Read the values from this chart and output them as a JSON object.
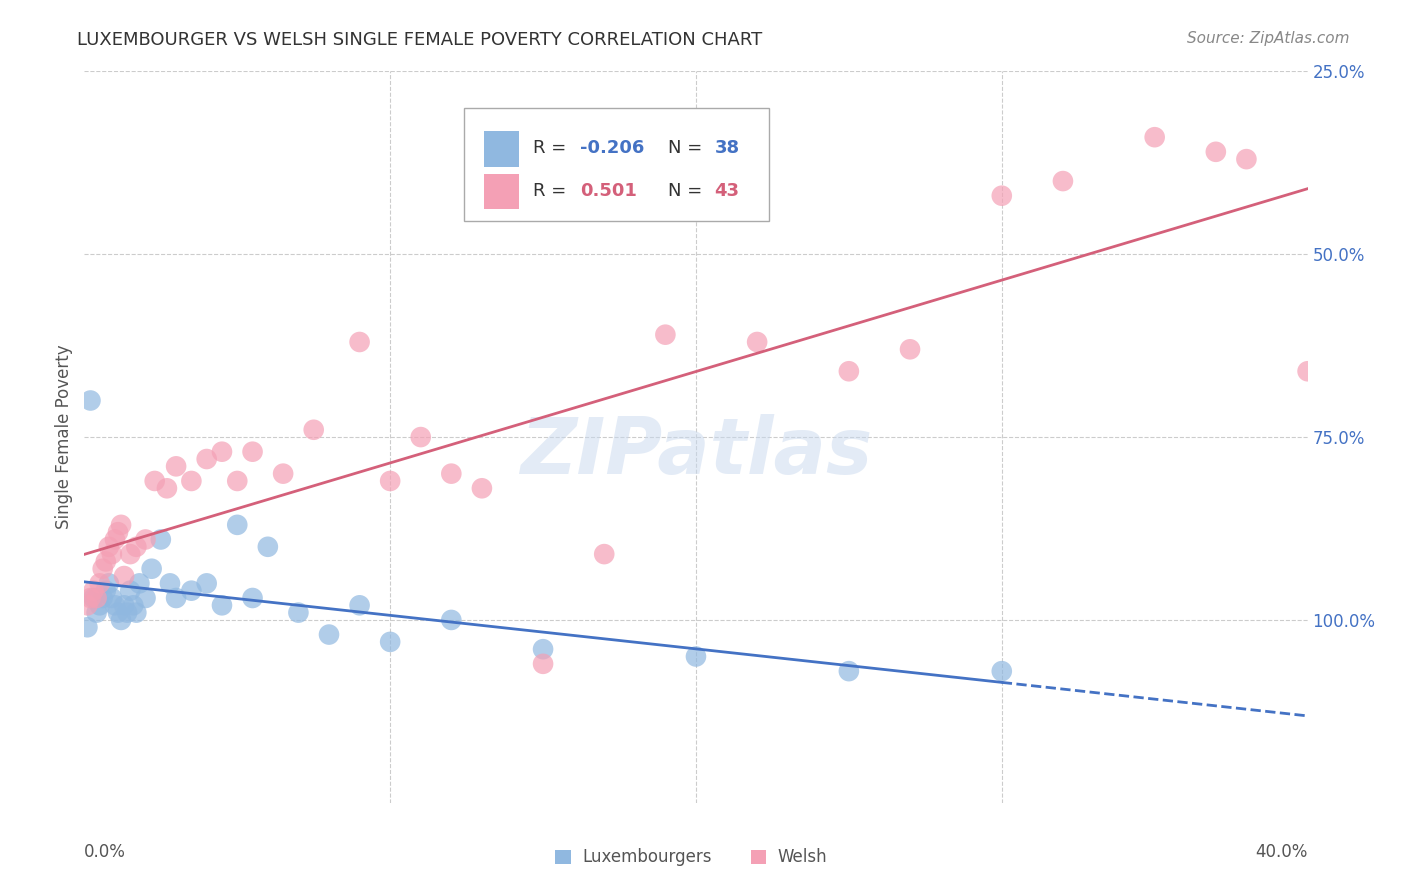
{
  "title": "LUXEMBOURGER VS WELSH SINGLE FEMALE POVERTY CORRELATION CHART",
  "source": "Source: ZipAtlas.com",
  "ylabel": "Single Female Poverty",
  "background_color": "#ffffff",
  "grid_color": "#cccccc",
  "watermark": "ZIPatlas",
  "lux_color": "#90b8e0",
  "welsh_color": "#f4a0b5",
  "lux_line_color": "#4472c4",
  "welsh_line_color": "#d4607a",
  "lux_R": -0.206,
  "lux_N": 38,
  "welsh_R": 0.501,
  "welsh_N": 43,
  "xlim": [
    0.0,
    40.0
  ],
  "ylim": [
    0.0,
    100.0
  ],
  "lux_x": [
    0.1,
    0.2,
    0.3,
    0.4,
    0.5,
    0.6,
    0.7,
    0.8,
    0.9,
    1.0,
    1.1,
    1.2,
    1.3,
    1.4,
    1.5,
    1.6,
    1.7,
    1.8,
    2.0,
    2.2,
    2.5,
    2.8,
    3.0,
    3.5,
    4.0,
    4.5,
    5.0,
    5.5,
    6.0,
    7.0,
    8.0,
    9.0,
    10.0,
    12.0,
    15.0,
    20.0,
    25.0,
    30.0
  ],
  "lux_y": [
    24,
    55,
    28,
    26,
    27,
    28,
    29,
    30,
    28,
    27,
    26,
    25,
    27,
    26,
    29,
    27,
    26,
    30,
    28,
    32,
    36,
    30,
    28,
    29,
    30,
    27,
    38,
    28,
    35,
    26,
    23,
    27,
    22,
    25,
    21,
    20,
    18,
    18
  ],
  "welsh_x": [
    0.1,
    0.2,
    0.3,
    0.4,
    0.5,
    0.6,
    0.7,
    0.8,
    0.9,
    1.0,
    1.1,
    1.2,
    1.3,
    1.5,
    1.7,
    2.0,
    2.3,
    2.7,
    3.0,
    3.5,
    4.0,
    4.5,
    5.0,
    5.5,
    6.5,
    7.5,
    9.0,
    10.0,
    11.0,
    12.0,
    13.0,
    15.0,
    17.0,
    19.0,
    22.0,
    25.0,
    27.0,
    30.0,
    32.0,
    35.0,
    37.0,
    38.0,
    40.0
  ],
  "welsh_y": [
    27,
    28,
    29,
    28,
    30,
    32,
    33,
    35,
    34,
    36,
    37,
    38,
    31,
    34,
    35,
    36,
    44,
    43,
    46,
    44,
    47,
    48,
    44,
    48,
    45,
    51,
    63,
    44,
    50,
    45,
    43,
    19,
    34,
    64,
    63,
    59,
    62,
    83,
    85,
    91,
    89,
    88,
    59
  ],
  "lux_solid_xmax": 30.0,
  "lux_dashed_xmax": 40.0
}
